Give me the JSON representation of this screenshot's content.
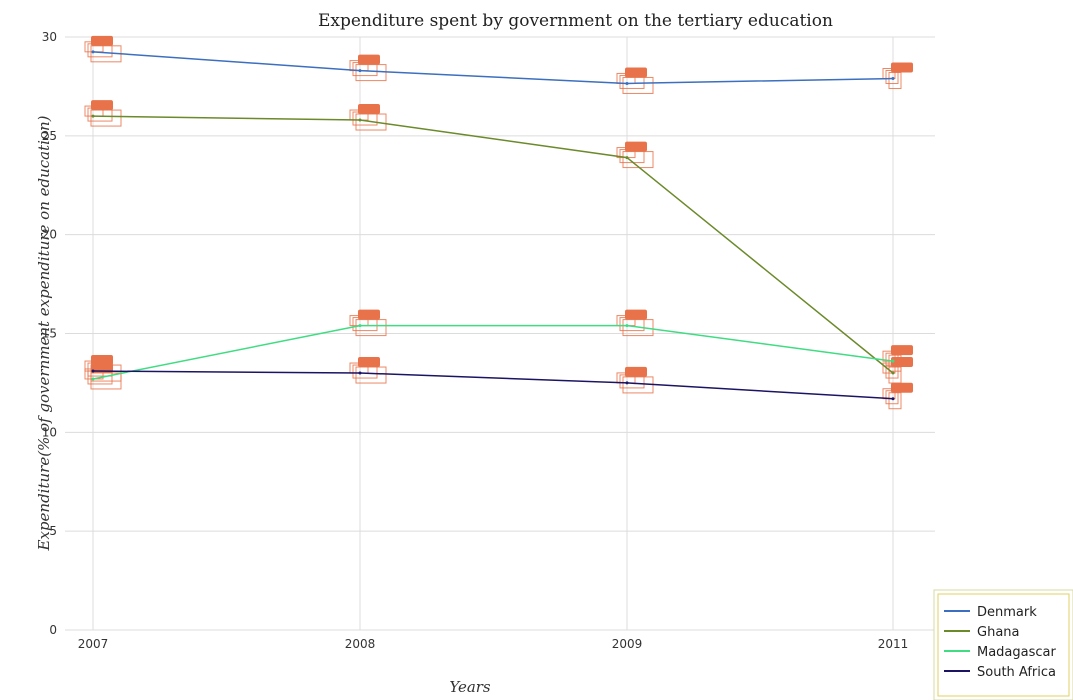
{
  "chart_data": {
    "type": "line",
    "title": "Expenditure spent by government on the tertiary education",
    "xlabel": "Years",
    "ylabel": "Expenditure(% of government expenditure on education)",
    "categories": [
      "2007",
      "2008",
      "2009",
      "2011"
    ],
    "ylim": [
      0,
      30
    ],
    "yticks": [
      "0",
      "5",
      "10",
      "15",
      "20",
      "25",
      "30"
    ],
    "grid": true,
    "legend_position": "bottom-right",
    "series": [
      {
        "name": "Denmark",
        "color": "#3c6fbf",
        "values": [
          29.25,
          28.3,
          27.65,
          27.9
        ]
      },
      {
        "name": "Ghana",
        "color": "#6b8a2a",
        "values": [
          26.0,
          25.8,
          23.9,
          13.0
        ]
      },
      {
        "name": "Madagascar",
        "color": "#3fdc82",
        "values": [
          12.7,
          15.4,
          15.4,
          13.6
        ]
      },
      {
        "name": "South Africa",
        "color": "#1b1464",
        "values": [
          13.1,
          13.0,
          12.5,
          11.7
        ]
      }
    ]
  }
}
